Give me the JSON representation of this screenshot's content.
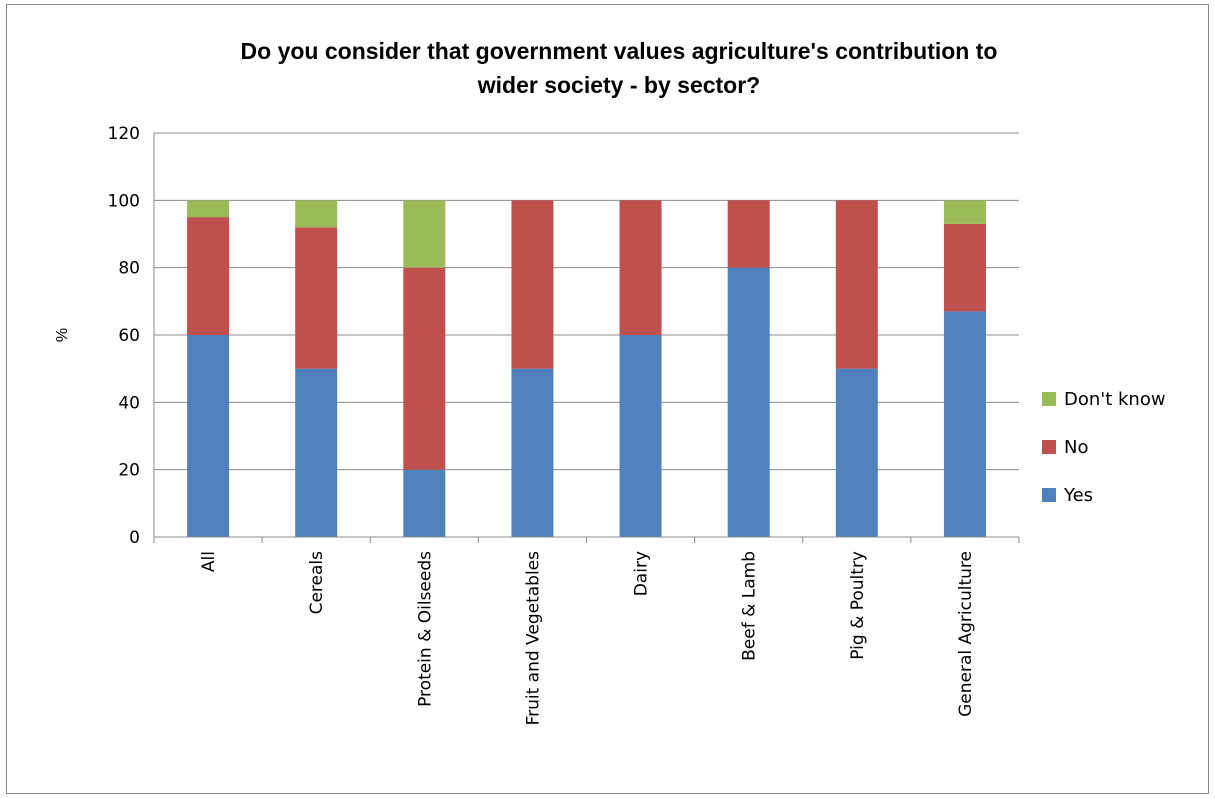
{
  "chart_data": {
    "type": "bar",
    "stacked": true,
    "title_lines": [
      "Do you consider that government values agriculture's contribution to",
      "wider society - by sector?"
    ],
    "ylabel": "%",
    "xlabel": "",
    "ylim": [
      0,
      120
    ],
    "yticks": [
      0,
      20,
      40,
      60,
      80,
      100,
      120
    ],
    "grid": true,
    "legend_position": "right",
    "categories": [
      "All",
      "Cereals",
      "Protein & Oilseeds",
      "Fruit and Vegetables",
      "Dairy",
      "Beef & Lamb",
      "Pig & Poultry",
      "General Agriculture"
    ],
    "series": [
      {
        "name": "Yes",
        "color": "#4f81bd",
        "values": [
          60,
          50,
          20,
          50,
          60,
          80,
          50,
          67
        ]
      },
      {
        "name": "No",
        "color": "#c0504d",
        "values": [
          35,
          42,
          60,
          50,
          40,
          20,
          50,
          26
        ]
      },
      {
        "name": "Don't know",
        "color": "#9bbb59",
        "values": [
          5,
          8,
          20,
          0,
          0,
          0,
          0,
          7
        ]
      }
    ],
    "legend_order": [
      "Don't know",
      "No",
      "Yes"
    ]
  }
}
